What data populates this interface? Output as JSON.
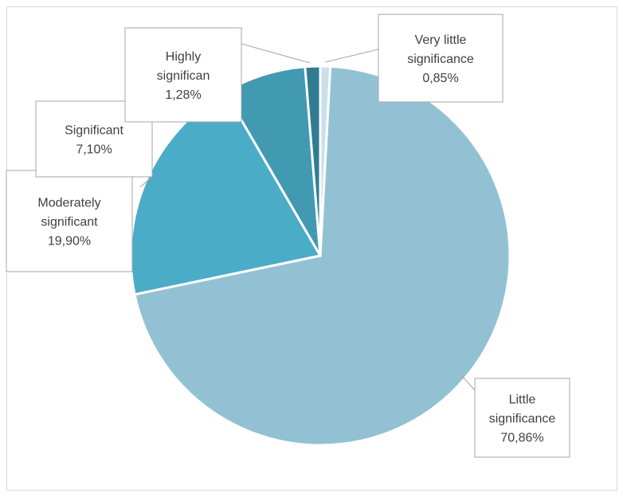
{
  "chart_data": {
    "type": "pie",
    "title": "",
    "slices": [
      {
        "name": "Little significance",
        "value": 70.86,
        "display": "70,86%",
        "color": "#93c1d4"
      },
      {
        "name": "Moderately significant",
        "value": 19.9,
        "display": "19,90%",
        "color": "#4aacc6"
      },
      {
        "name": "Significant",
        "value": 7.1,
        "display": "7,10%",
        "color": "#4299b2"
      },
      {
        "name": "Highly significan",
        "value": 1.28,
        "display": "1,28%",
        "color": "#2f7d92"
      },
      {
        "name": "Very little significance",
        "value": 0.85,
        "display": "0,85%",
        "color": "#c9e0ea"
      }
    ],
    "start_angle": "12 o'clock, clockwise",
    "legend": "none (callout data labels)"
  }
}
